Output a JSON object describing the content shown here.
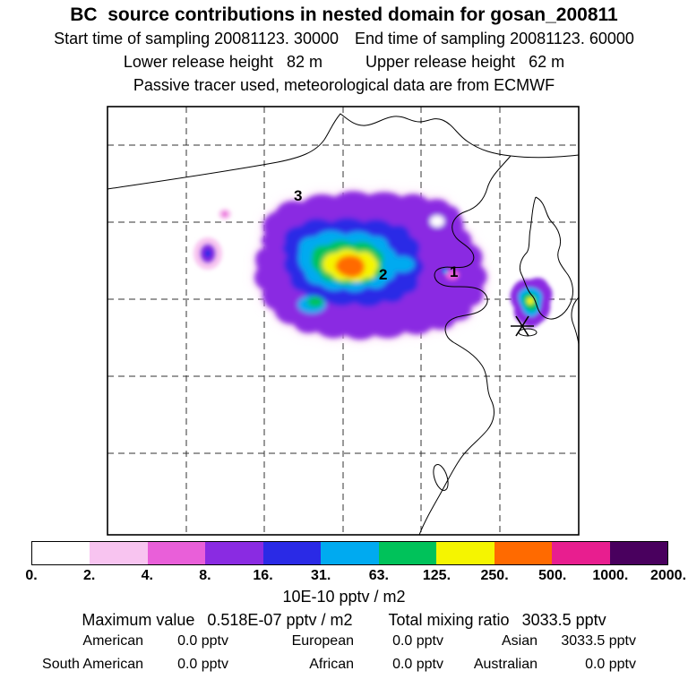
{
  "header": {
    "title": "BC  source contributions in nested domain for gosan_200811",
    "sampling_start": "Start time of sampling 20081123. 30000",
    "sampling_end": "End time of sampling 20081123. 60000",
    "lower_release": "Lower release height   82 m",
    "upper_release": "Upper release height   62 m",
    "tracer_note": "Passive tracer used, meteorological data are from ECMWF"
  },
  "map": {
    "region_labels": [
      {
        "label": "1"
      },
      {
        "label": "2"
      },
      {
        "label": "3"
      }
    ],
    "station_marker": "gosan-site-asterisk"
  },
  "colorbar": {
    "ticks": [
      "0.",
      "2.",
      "4.",
      "8.",
      "16.",
      "31.",
      "63.",
      "125.",
      "250.",
      "500.",
      "1000.",
      "2000."
    ],
    "colors": [
      "#ffffff",
      "#f8c4f0",
      "#e95fd9",
      "#8a2be2",
      "#2a2ae6",
      "#00aaf0",
      "#00c25a",
      "#f5f500",
      "#ff6a00",
      "#e81e8f",
      "#49005e"
    ],
    "unit_label": "10E-10 pptv / m2"
  },
  "stats": {
    "maximum_label": "Maximum value",
    "maximum_value": "0.518E-07 pptv / m2",
    "total_label": "Total mixing ratio",
    "total_value": "3033.5 pptv",
    "regions": [
      {
        "label": "American",
        "value": "0.0 pptv"
      },
      {
        "label": "European",
        "value": "0.0 pptv"
      },
      {
        "label": "Asian",
        "value": "3033.5 pptv"
      },
      {
        "label": "South American",
        "value": "0.0 pptv"
      },
      {
        "label": "African",
        "value": "0.0 pptv"
      },
      {
        "label": "Australian",
        "value": "0.0 pptv"
      }
    ]
  },
  "chart_data": {
    "type": "heatmap",
    "title": "BC source contributions in nested domain for gosan_200811",
    "subtitle_lines": [
      "Start time of sampling 20081123. 30000",
      "End time of sampling 20081123. 60000",
      "Lower release height 82 m",
      "Upper release height 62 m",
      "Passive tracer used, meteorological data are from ECMWF"
    ],
    "colorbar_levels": [
      0,
      2,
      4,
      8,
      16,
      31,
      63,
      125,
      250,
      500,
      1000,
      2000
    ],
    "colorbar_unit": "10E-10 pptv / m2",
    "colorbar_colors": [
      "#ffffff",
      "#f8c4f0",
      "#e95fd9",
      "#8a2be2",
      "#2a2ae6",
      "#00aaf0",
      "#00c25a",
      "#f5f500",
      "#ff6a00",
      "#e81e8f",
      "#49005e"
    ],
    "region_annotations": [
      "1",
      "2",
      "3"
    ],
    "station_marker": "Gosan",
    "maximum_value": "0.518E-07 pptv / m2",
    "total_mixing_ratio": "3033.5 pptv",
    "contributions_pptv": {
      "American": 0.0,
      "European": 0.0,
      "Asian": 3033.5,
      "South_American": 0.0,
      "African": 0.0,
      "Australian": 0.0
    }
  }
}
